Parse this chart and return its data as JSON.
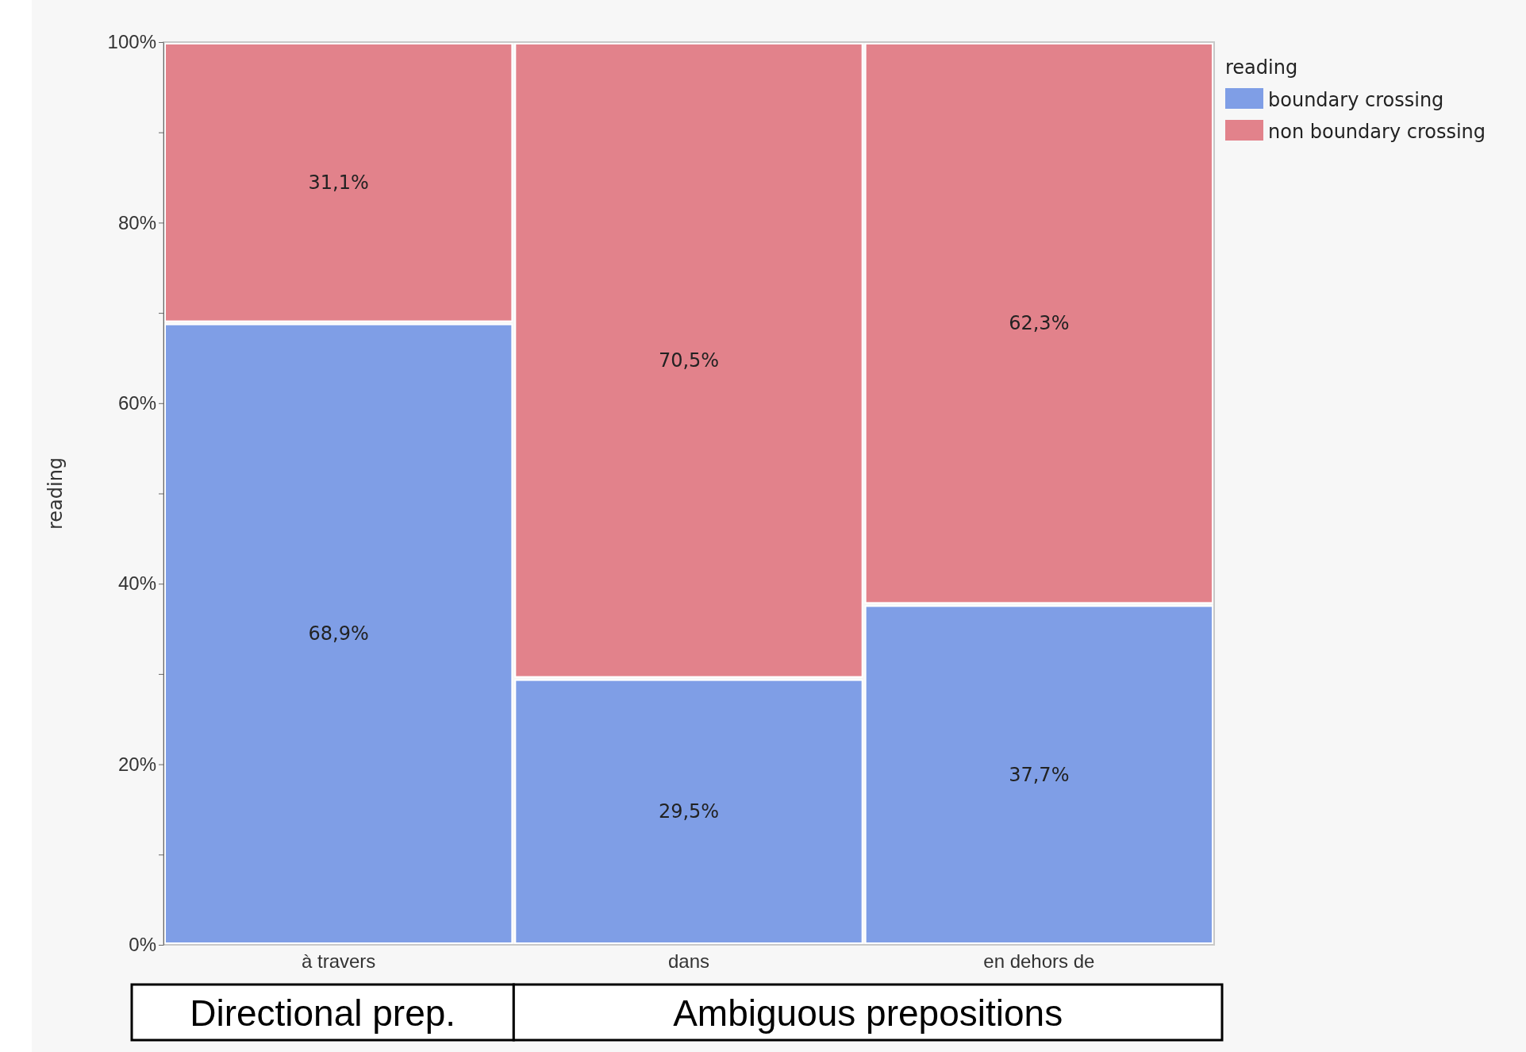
{
  "chart_data": {
    "type": "bar",
    "stacked": true,
    "ylabel": "reading",
    "legend_title": "reading",
    "legend": "right",
    "categories": [
      "à travers",
      "dans",
      "en dehors de"
    ],
    "series": [
      {
        "name": "boundary crossing",
        "color": "#7f9ee6",
        "values": [
          68.9,
          29.5,
          37.7
        ],
        "value_labels": [
          "68,9%",
          "29,5%",
          "37,7%"
        ]
      },
      {
        "name": "non boundary crossing",
        "color": "#e2828b",
        "values": [
          31.1,
          70.5,
          62.3
        ],
        "value_labels": [
          "31,1%",
          "70,5%",
          "62,3%"
        ]
      }
    ],
    "ylim": [
      0,
      100
    ],
    "yticks": [
      {
        "value": 0,
        "label": "0%"
      },
      {
        "value": 10,
        "label": null
      },
      {
        "value": 20,
        "label": "20%"
      },
      {
        "value": 30,
        "label": null
      },
      {
        "value": 40,
        "label": "40%"
      },
      {
        "value": 50,
        "label": null
      },
      {
        "value": 60,
        "label": "60%"
      },
      {
        "value": 70,
        "label": null
      },
      {
        "value": 80,
        "label": "80%"
      },
      {
        "value": 90,
        "label": null
      },
      {
        "value": 100,
        "label": "100%"
      }
    ],
    "annotations": [
      "Directional prep.",
      "Ambiguous prepositions"
    ]
  }
}
